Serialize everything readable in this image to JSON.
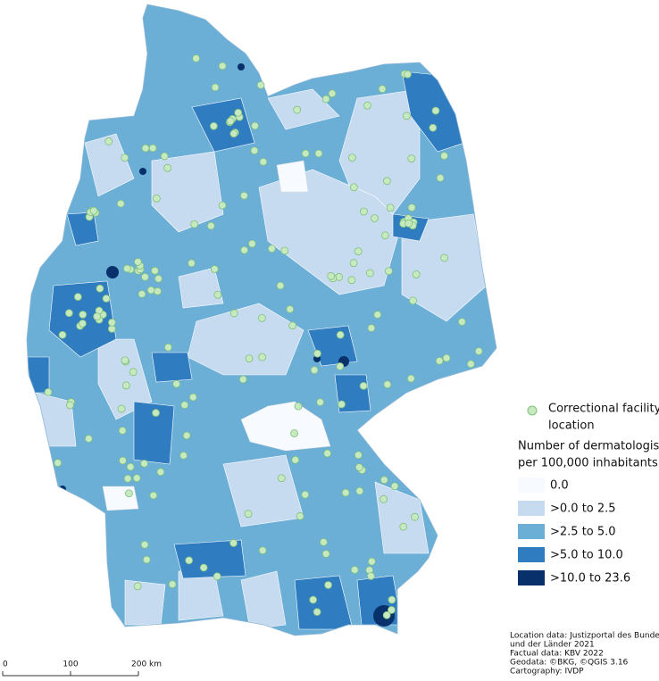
{
  "legend": {
    "facility_label": [
      "Correctional facility",
      "location"
    ],
    "title": [
      "Number of dermatologists",
      "per 100,000 inhabitants"
    ],
    "classes": [
      {
        "label": "0.0",
        "color": "#f7fbff"
      },
      {
        "label": ">0.0  to  2.5",
        "color": "#c6dbef"
      },
      {
        "label": ">2.5  to  5.0",
        "color": "#6baed6"
      },
      {
        "label": ">5.0  to  10.0",
        "color": "#2f7dc0"
      },
      {
        "label": ">10.0  to  23.6",
        "color": "#08306b"
      }
    ]
  },
  "scale_bar": {
    "labels": [
      "0",
      "100",
      "200 km"
    ]
  },
  "credits": [
    "Location data: Justizportal des Bundes",
    "und der Länder 2021",
    "Factual data: KBV 2022",
    "Geodata: ©BKG, ©QGIS 3.16",
    "Cartography: IVDP"
  ]
}
